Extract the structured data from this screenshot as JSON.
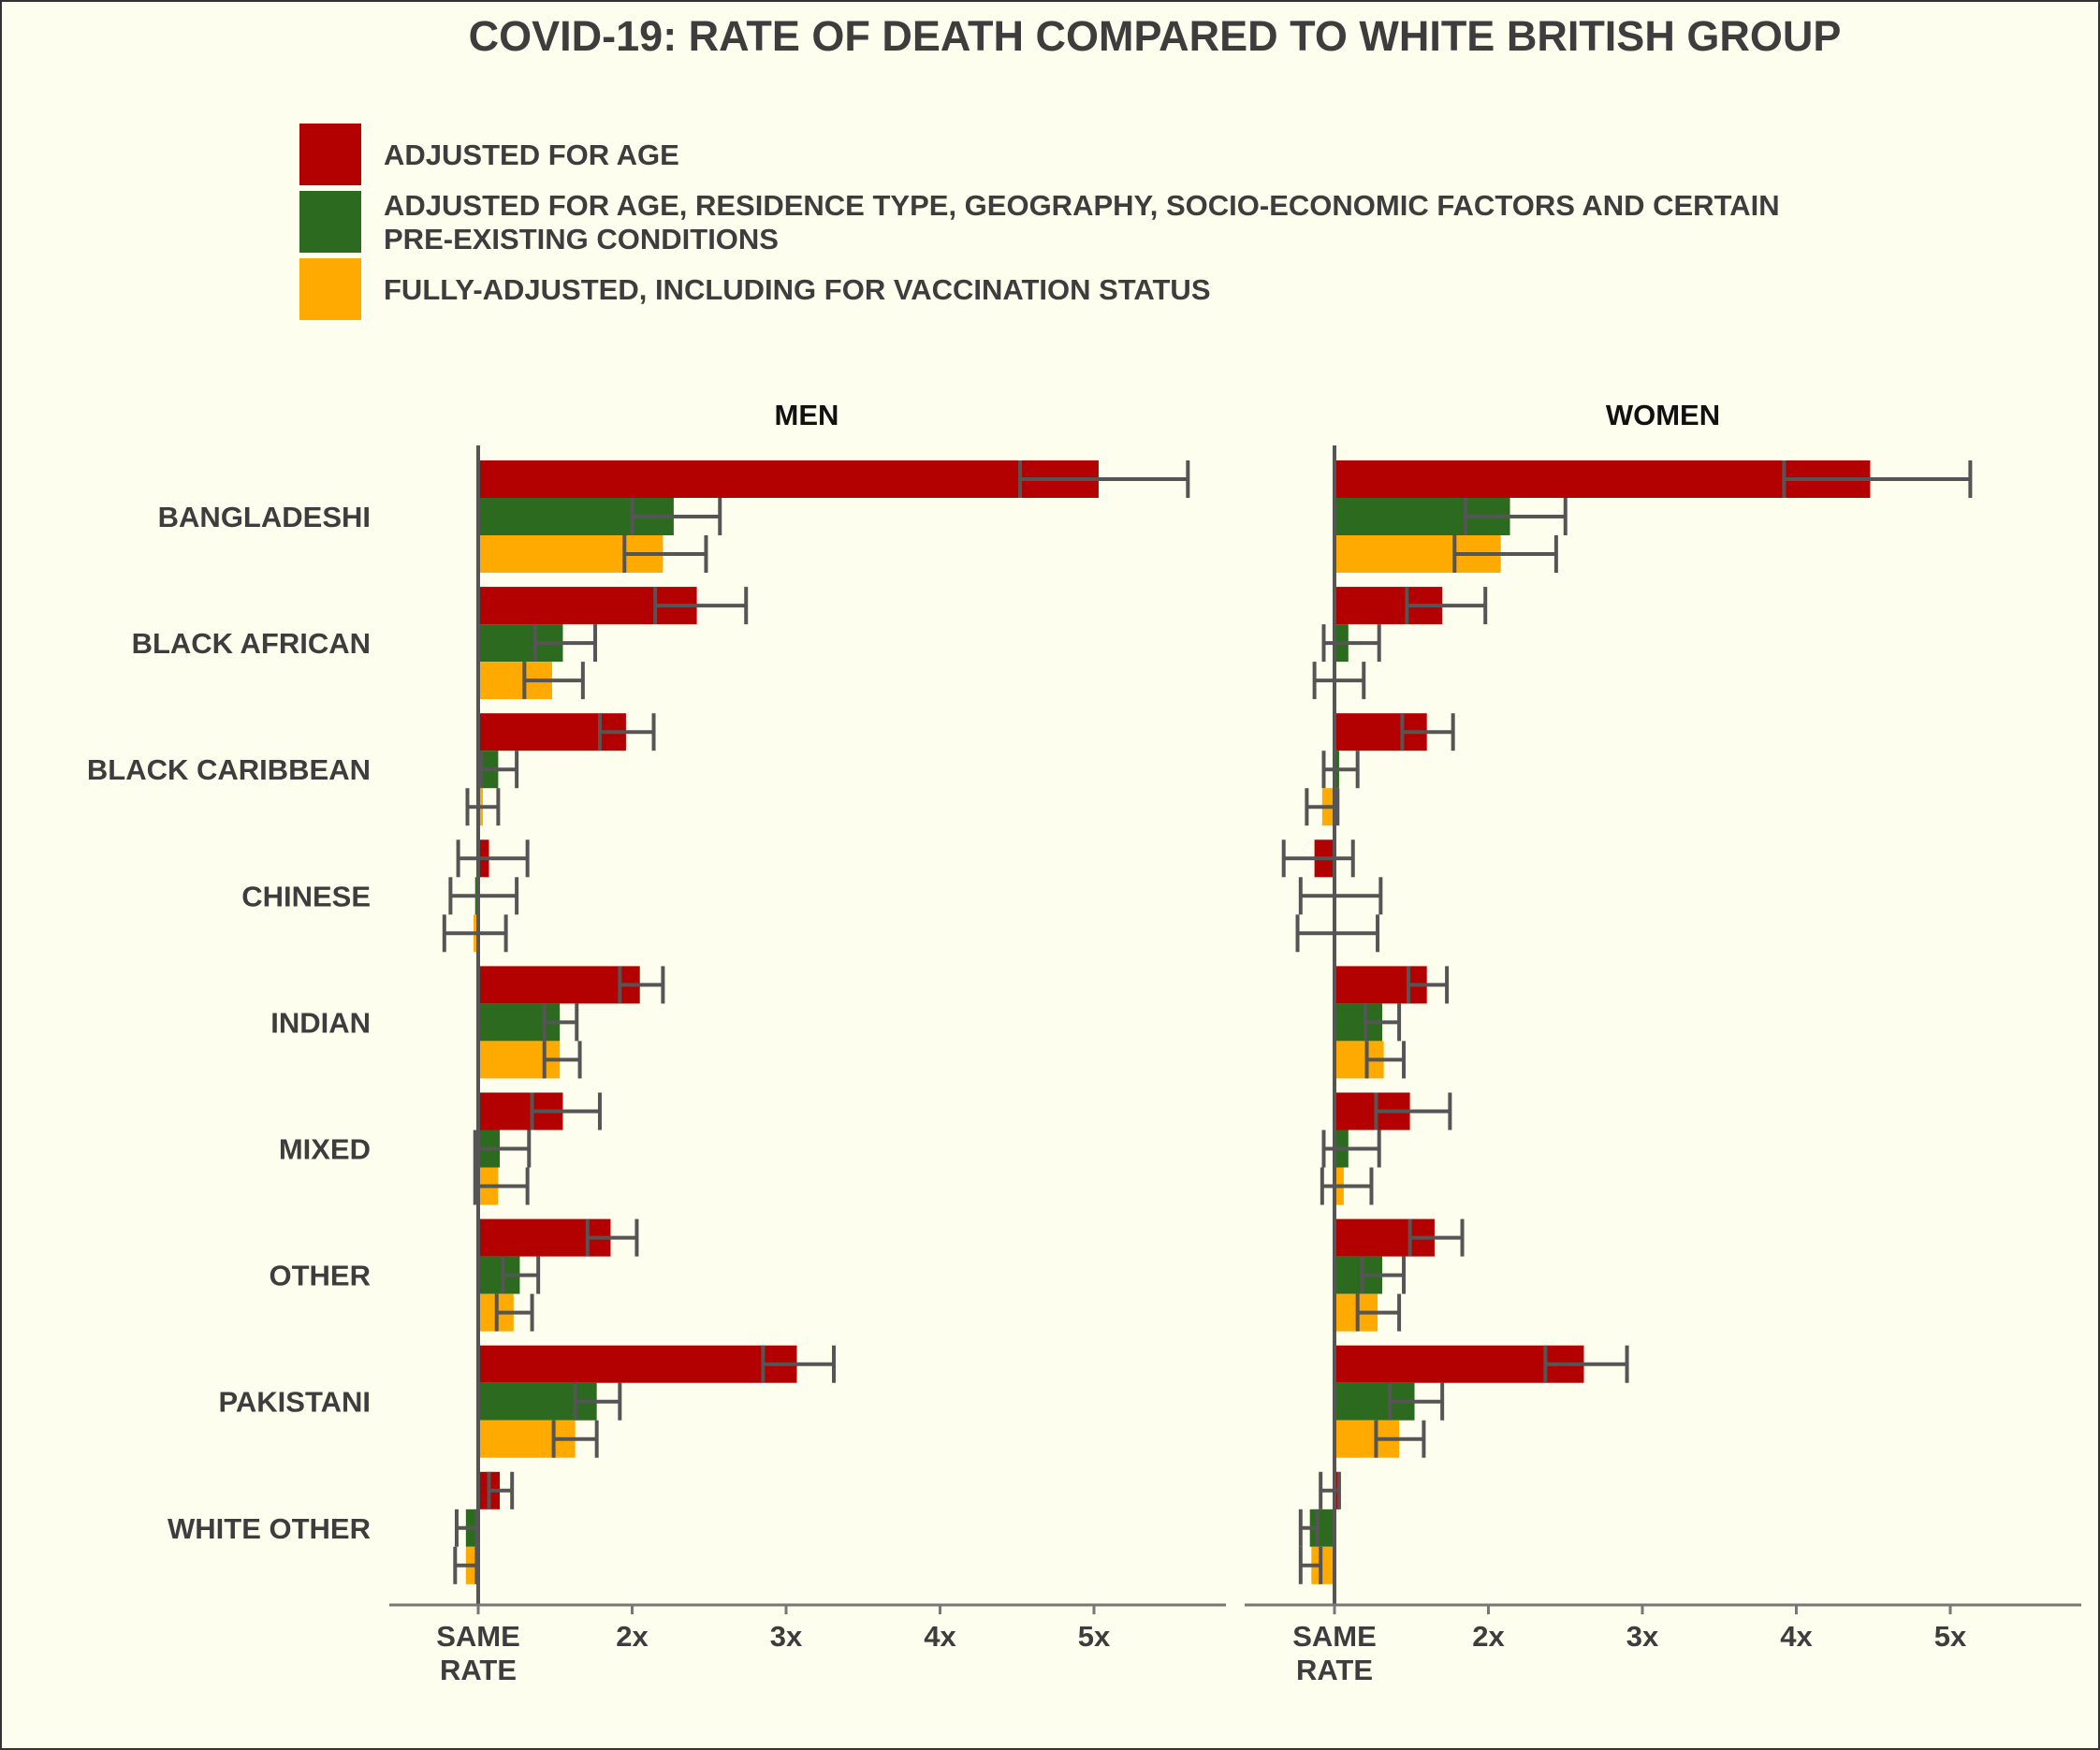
{
  "chart_data": {
    "type": "bar",
    "orientation": "horizontal",
    "title": "COVID-19: RATE OF DEATH COMPARED TO WHITE BRITISH GROUP",
    "legend": {
      "placement": "top",
      "entries": [
        {
          "key": "age",
          "lines": [
            "ADJUSTED FOR AGE"
          ],
          "color": "#b30000"
        },
        {
          "key": "partial",
          "lines": [
            "ADJUSTED FOR AGE, RESIDENCE TYPE, GEOGRAPHY, SOCIO-ECONOMIC FACTORS AND CERTAIN",
            "PRE-EXISTING CONDITIONS"
          ],
          "color": "#2b6a1f"
        },
        {
          "key": "full",
          "lines": [
            "FULLY-ADJUSTED, INCLUDING FOR VACCINATION STATUS"
          ],
          "color": "#ffaa00"
        }
      ]
    },
    "baseline": 1,
    "xlim": [
      0.42,
      5.85
    ],
    "x_ticks": [
      {
        "value": 1,
        "lines": [
          "SAME",
          "RATE"
        ]
      },
      {
        "value": 2,
        "lines": [
          "2x"
        ]
      },
      {
        "value": 3,
        "lines": [
          "3x"
        ]
      },
      {
        "value": 4,
        "lines": [
          "4x"
        ]
      },
      {
        "value": 5,
        "lines": [
          "5x"
        ]
      }
    ],
    "categories": [
      "BANGLADESHI",
      "BLACK AFRICAN",
      "BLACK CARIBBEAN",
      "CHINESE",
      "INDIAN",
      "MIXED",
      "OTHER",
      "PAKISTANI",
      "WHITE OTHER"
    ],
    "grid": false,
    "panels": [
      {
        "name": "MEN",
        "series": [
          {
            "key": "age",
            "values": [
              5.03,
              2.42,
              1.96,
              1.07,
              2.05,
              1.55,
              1.86,
              3.07,
              1.14
            ],
            "lower": [
              4.52,
              2.15,
              1.79,
              0.87,
              1.92,
              1.35,
              1.71,
              2.85,
              1.07
            ],
            "upper": [
              5.61,
              2.74,
              2.14,
              1.32,
              2.2,
              1.79,
              2.03,
              3.31,
              1.22
            ]
          },
          {
            "key": "partial",
            "values": [
              2.27,
              1.55,
              1.13,
              0.98,
              1.53,
              1.14,
              1.27,
              1.77,
              0.92
            ],
            "lower": [
              2.0,
              1.37,
              1.02,
              0.82,
              1.43,
              0.98,
              1.16,
              1.63,
              0.86
            ],
            "upper": [
              2.57,
              1.76,
              1.25,
              1.25,
              1.64,
              1.33,
              1.39,
              1.92,
              0.99
            ]
          },
          {
            "key": "full",
            "values": [
              2.2,
              1.48,
              1.03,
              0.97,
              1.53,
              1.13,
              1.23,
              1.63,
              0.92
            ],
            "lower": [
              1.95,
              1.3,
              0.93,
              0.78,
              1.43,
              0.98,
              1.12,
              1.49,
              0.85
            ],
            "upper": [
              2.48,
              1.68,
              1.13,
              1.18,
              1.66,
              1.32,
              1.35,
              1.77,
              0.99
            ]
          }
        ]
      },
      {
        "name": "WOMEN",
        "series": [
          {
            "key": "age",
            "values": [
              4.48,
              1.7,
              1.6,
              0.87,
              1.6,
              1.49,
              1.65,
              2.62,
              1.03
            ],
            "lower": [
              3.92,
              1.47,
              1.44,
              0.67,
              1.48,
              1.27,
              1.49,
              2.37,
              0.91
            ],
            "upper": [
              5.13,
              1.98,
              1.77,
              1.12,
              1.73,
              1.75,
              1.83,
              2.9,
              1.03
            ]
          },
          {
            "key": "partial",
            "values": [
              2.14,
              1.09,
              1.03,
              1.0,
              1.31,
              1.09,
              1.31,
              1.52,
              0.84
            ],
            "lower": [
              1.85,
              0.93,
              0.93,
              0.78,
              1.2,
              0.93,
              1.18,
              1.36,
              0.78
            ],
            "upper": [
              2.5,
              1.29,
              1.15,
              1.3,
              1.42,
              1.29,
              1.45,
              1.7,
              0.89
            ]
          },
          {
            "key": "full",
            "values": [
              2.08,
              1.01,
              0.92,
              1.0,
              1.32,
              1.06,
              1.28,
              1.42,
              0.85
            ],
            "lower": [
              1.78,
              0.87,
              0.82,
              0.76,
              1.21,
              0.92,
              1.15,
              1.27,
              0.78
            ],
            "upper": [
              2.44,
              1.19,
              1.02,
              1.28,
              1.45,
              1.24,
              1.42,
              1.58,
              0.91
            ]
          }
        ]
      }
    ]
  }
}
